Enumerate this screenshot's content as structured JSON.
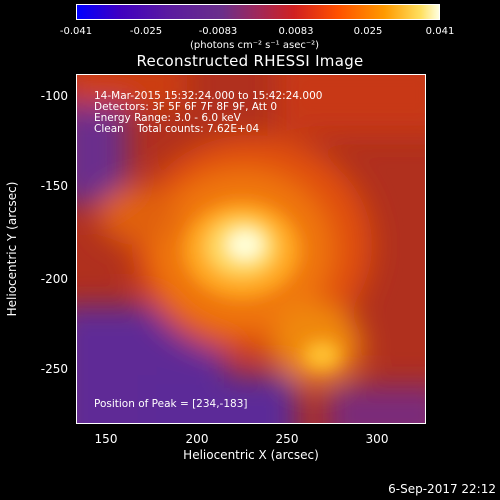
{
  "colorbar": {
    "ticks": [
      "-0.041",
      "-0.025",
      "-0.0083",
      "0.0083",
      "0.025",
      "0.041"
    ],
    "units": "(photons cm⁻² s⁻¹ asec⁻²)"
  },
  "chart_data": {
    "type": "heatmap",
    "title": "Reconstructed RHESSI Image",
    "xlabel": "Heliocentric X (arcsec)",
    "ylabel": "Heliocentric Y (arcsec)",
    "xlim": [
      133,
      327
    ],
    "ylim": [
      -280,
      -86
    ],
    "x_ticks": [
      "150",
      "200",
      "250",
      "300"
    ],
    "y_ticks": [
      "-100",
      "-150",
      "-200",
      "-250"
    ],
    "zlim": [
      -0.041,
      0.041
    ],
    "peak": [
      234,
      -183
    ],
    "annotations": {
      "time": "14-Mar-2015 15:32:24.000 to 15:42:24.000",
      "detectors": "Detectors: 3F 5F 6F 7F 8F 9F, Att 0",
      "energy": "Energy Range: 3.0 - 6.0 keV",
      "method": "Clean    Total counts: 7.62E+04",
      "peak": "Position of Peak = [234,-183]"
    }
  },
  "footer": {
    "date": "6-Sep-2017 22:12"
  }
}
